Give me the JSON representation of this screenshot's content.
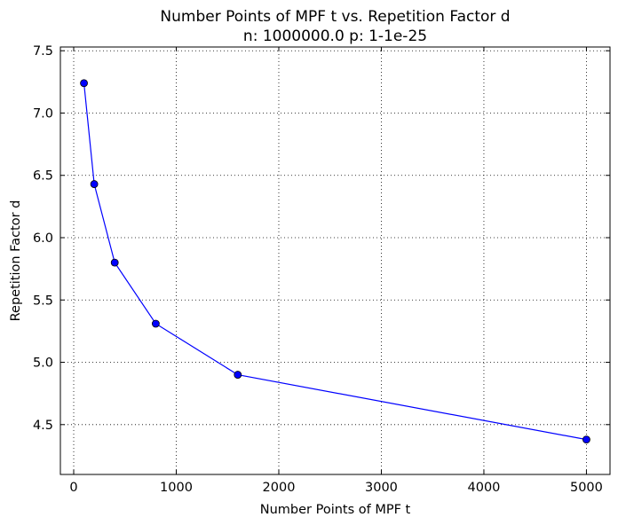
{
  "chart_data": {
    "type": "line",
    "title": "Number Points of MPF t vs. Repetition Factor d",
    "subtitle": "n: 1000000.0 p: 1-1e-25",
    "xlabel": "Number Points of MPF t",
    "ylabel": "Repetition Factor d",
    "xlim": [
      -130,
      5230
    ],
    "ylim": [
      4.1,
      7.53
    ],
    "xticks": [
      0,
      1000,
      2000,
      3000,
      4000,
      5000
    ],
    "xtick_labels": [
      "0",
      "1000",
      "2000",
      "3000",
      "4000",
      "5000"
    ],
    "yticks": [
      4.5,
      5.0,
      5.5,
      6.0,
      6.5,
      7.0,
      7.5
    ],
    "ytick_labels": [
      "4.5",
      "5.0",
      "5.5",
      "6.0",
      "6.5",
      "7.0",
      "7.5"
    ],
    "grid": true,
    "legend": "none",
    "color": "#0000ff",
    "series": [
      {
        "x": [
          100,
          200,
          400,
          800,
          1600,
          5000
        ],
        "values": [
          7.24,
          6.43,
          5.8,
          5.31,
          4.9,
          4.38
        ]
      }
    ]
  }
}
